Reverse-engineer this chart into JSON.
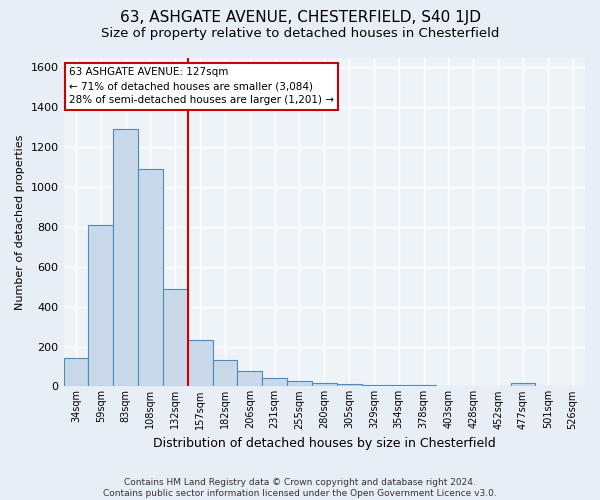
{
  "title": "63, ASHGATE AVENUE, CHESTERFIELD, S40 1JD",
  "subtitle": "Size of property relative to detached houses in Chesterfield",
  "xlabel": "Distribution of detached houses by size in Chesterfield",
  "ylabel": "Number of detached properties",
  "footer_line1": "Contains HM Land Registry data © Crown copyright and database right 2024.",
  "footer_line2": "Contains public sector information licensed under the Open Government Licence v3.0.",
  "annotation_line1": "63 ASHGATE AVENUE: 127sqm",
  "annotation_line2": "← 71% of detached houses are smaller (3,084)",
  "annotation_line3": "28% of semi-detached houses are larger (1,201) →",
  "bar_categories": [
    "34sqm",
    "59sqm",
    "83sqm",
    "108sqm",
    "132sqm",
    "157sqm",
    "182sqm",
    "206sqm",
    "231sqm",
    "255sqm",
    "280sqm",
    "305sqm",
    "329sqm",
    "354sqm",
    "378sqm",
    "403sqm",
    "428sqm",
    "452sqm",
    "477sqm",
    "501sqm",
    "526sqm"
  ],
  "bar_values": [
    140,
    810,
    1290,
    1090,
    490,
    235,
    130,
    75,
    40,
    25,
    15,
    10,
    8,
    5,
    5,
    3,
    2,
    2,
    15,
    2,
    2
  ],
  "bar_color": "#c9d9ea",
  "bar_edge_color": "#4d8bbf",
  "red_line_x": 4.5,
  "red_line_color": "#cc0000",
  "ylim": [
    0,
    1650
  ],
  "bg_color": "#e8eef5",
  "plot_bg_color": "#eef3f8",
  "grid_color": "#ffffff",
  "title_fontsize": 11,
  "subtitle_fontsize": 9.5,
  "ylabel_fontsize": 8,
  "xlabel_fontsize": 9,
  "tick_fontsize": 7,
  "ytick_fontsize": 8,
  "footer_fontsize": 6.5,
  "ann_fontsize": 7.5
}
